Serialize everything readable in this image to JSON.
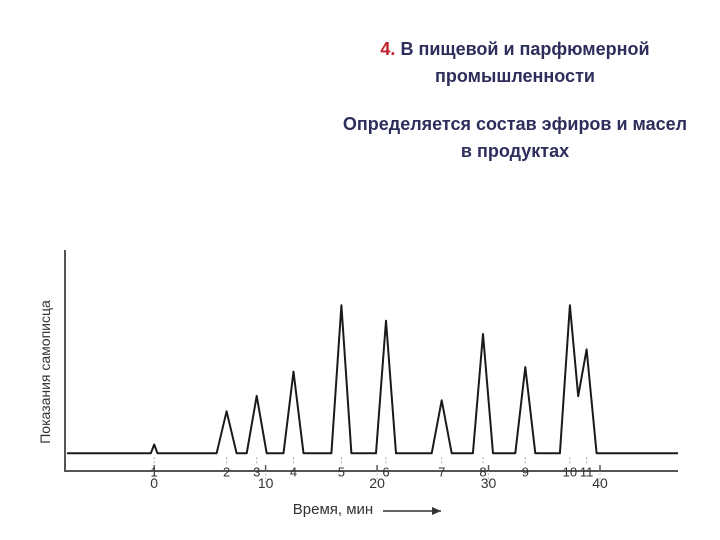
{
  "slide": {
    "number": "4.",
    "heading": "В пищевой и парфюмерной промышленности",
    "body": "Определяется состав эфиров и масел в продуктах"
  },
  "chart_data": {
    "type": "line",
    "title": "",
    "xlabel": "Время, мин",
    "ylabel": "Показания самописца",
    "xlim": [
      -8,
      47
    ],
    "ylim": [
      0,
      1
    ],
    "x_ticks": [
      0,
      10,
      20,
      30,
      40
    ],
    "x_tick_labels": [
      "0",
      "10",
      "20",
      "30",
      "40"
    ],
    "baseline": 0.08,
    "grid": false,
    "peaks": [
      {
        "label": "1",
        "x": 0,
        "height": 0.12
      },
      {
        "label": "2",
        "x": 6.5,
        "height": 0.27
      },
      {
        "label": "3",
        "x": 9.2,
        "height": 0.34
      },
      {
        "label": "4",
        "x": 12.5,
        "height": 0.45
      },
      {
        "label": "5",
        "x": 16.8,
        "height": 0.75
      },
      {
        "label": "6",
        "x": 20.8,
        "height": 0.68
      },
      {
        "label": "7",
        "x": 25.8,
        "height": 0.32
      },
      {
        "label": "8",
        "x": 29.5,
        "height": 0.62
      },
      {
        "label": "9",
        "x": 33.3,
        "height": 0.47
      },
      {
        "label": "10",
        "x": 37.3,
        "height": 0.75
      },
      {
        "label": "11",
        "x": 38.8,
        "height": 0.55
      }
    ]
  },
  "colors": {
    "text": "#2e2e5c",
    "accent": "#c0202a",
    "line": "#1a1a1a"
  }
}
